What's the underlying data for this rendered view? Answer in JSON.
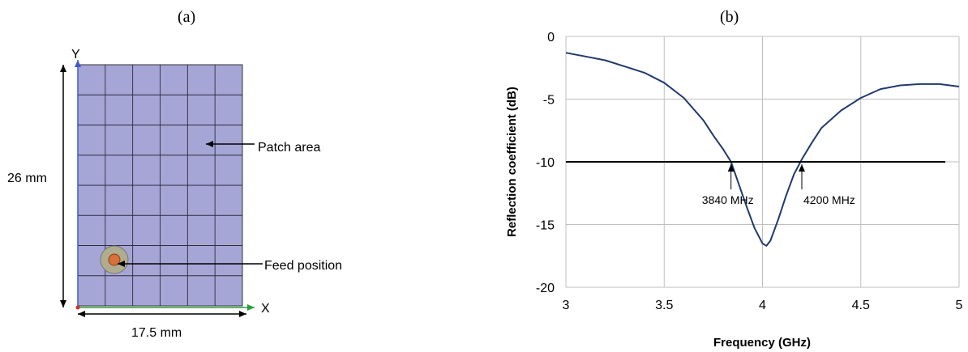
{
  "panel_a": {
    "label": "(a)",
    "y_axis": "Y",
    "x_axis": "X",
    "height_dim": "26 mm",
    "width_dim": "17.5 mm",
    "patch_label": "Patch area",
    "feed_label": "Feed position",
    "grid_cols": 6,
    "grid_rows": 8,
    "patch_color": "#a6a6d6",
    "feed_outer_color": "#b0ad8f",
    "feed_inner_color": "#d9703a"
  },
  "panel_b": {
    "label": "(b)"
  },
  "chart_data": {
    "type": "line",
    "xlabel": "Frequency (GHz)",
    "ylabel": "Reflection coefficient (dB)",
    "xlim": [
      3,
      5
    ],
    "ylim": [
      -20,
      0
    ],
    "xticks": [
      "3",
      "3.5",
      "4",
      "4.5",
      "5"
    ],
    "yticks": [
      "0",
      "-5",
      "-10",
      "-15",
      "-20"
    ],
    "grid": true,
    "series": [
      {
        "color": "#1f3a6e",
        "x": [
          3.0,
          3.1,
          3.2,
          3.3,
          3.4,
          3.5,
          3.6,
          3.7,
          3.75,
          3.8,
          3.84,
          3.88,
          3.92,
          3.96,
          4.0,
          4.02,
          4.04,
          4.08,
          4.12,
          4.16,
          4.2,
          4.25,
          4.3,
          4.4,
          4.5,
          4.6,
          4.7,
          4.8,
          4.9,
          5.0
        ],
        "y": [
          -1.3,
          -1.6,
          -1.9,
          -2.4,
          -2.9,
          -3.7,
          -4.9,
          -6.7,
          -7.9,
          -9.0,
          -10.0,
          -11.8,
          -13.6,
          -15.3,
          -16.5,
          -16.7,
          -16.3,
          -14.6,
          -12.7,
          -11.0,
          -9.8,
          -8.5,
          -7.3,
          -5.9,
          -4.9,
          -4.2,
          -3.9,
          -3.8,
          -3.8,
          -4.0
        ]
      },
      {
        "color": "#000000",
        "x": [
          3.0,
          4.93
        ],
        "y": [
          -10,
          -10
        ]
      }
    ],
    "annotations": [
      {
        "text": "3840 MHz",
        "x": 3.84,
        "y": -10
      },
      {
        "text": "4200 MHz",
        "x": 4.2,
        "y": -10
      }
    ]
  }
}
